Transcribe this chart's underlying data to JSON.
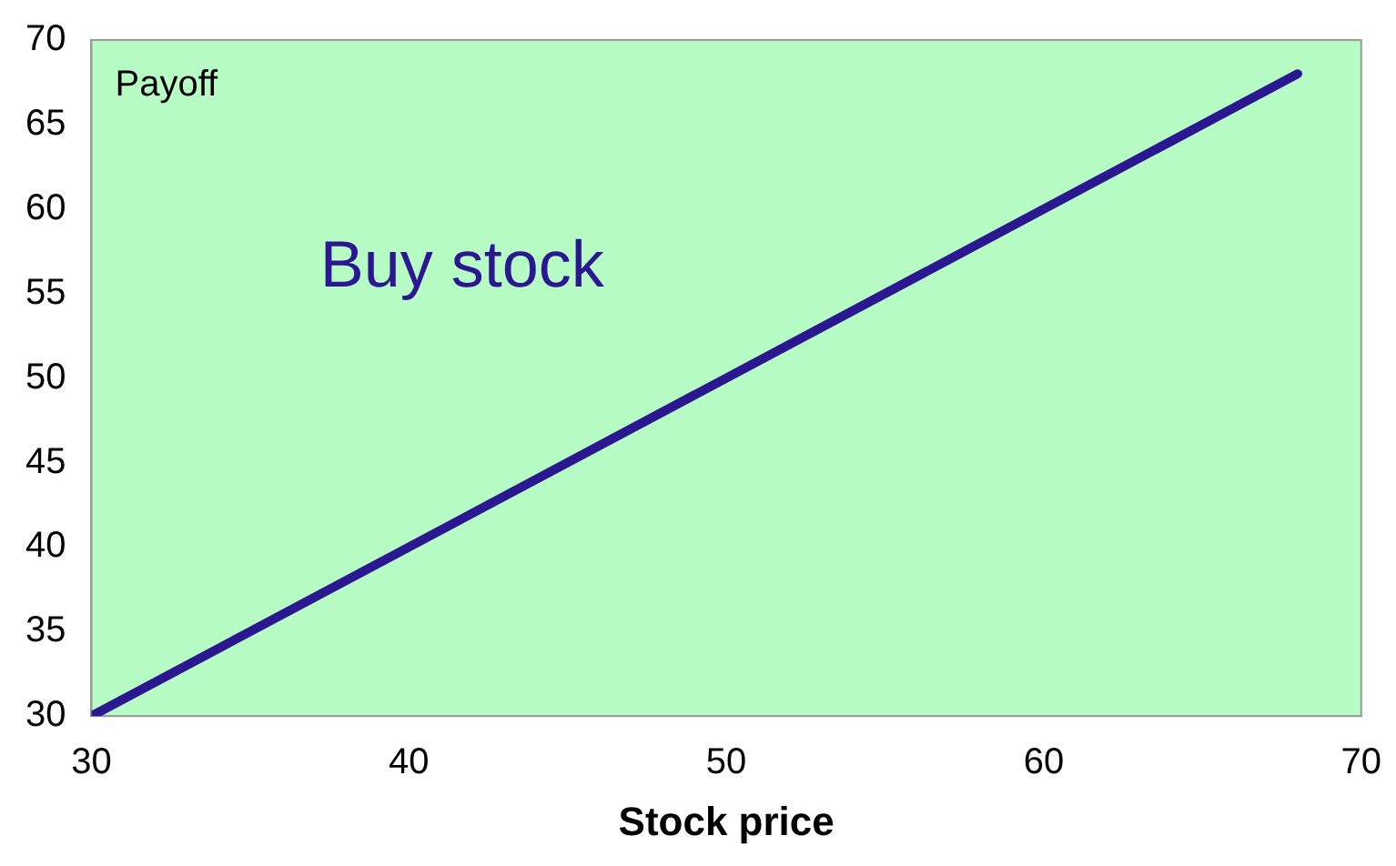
{
  "chart_data": {
    "type": "line",
    "xlabel": "Stock price",
    "ylabel": "Payoff",
    "x": [
      30,
      68
    ],
    "series": [
      {
        "name": "Buy stock",
        "color": "#2b1890",
        "values": [
          30,
          68
        ]
      }
    ],
    "xlim": [
      30,
      70
    ],
    "xticks": [
      30,
      40,
      50,
      60,
      70
    ],
    "ylim": [
      30,
      70
    ],
    "yticks": [
      30,
      35,
      40,
      45,
      50,
      55,
      60,
      65,
      70
    ],
    "grid": false,
    "legend": false,
    "marker": "none",
    "line_style": "solid"
  }
}
